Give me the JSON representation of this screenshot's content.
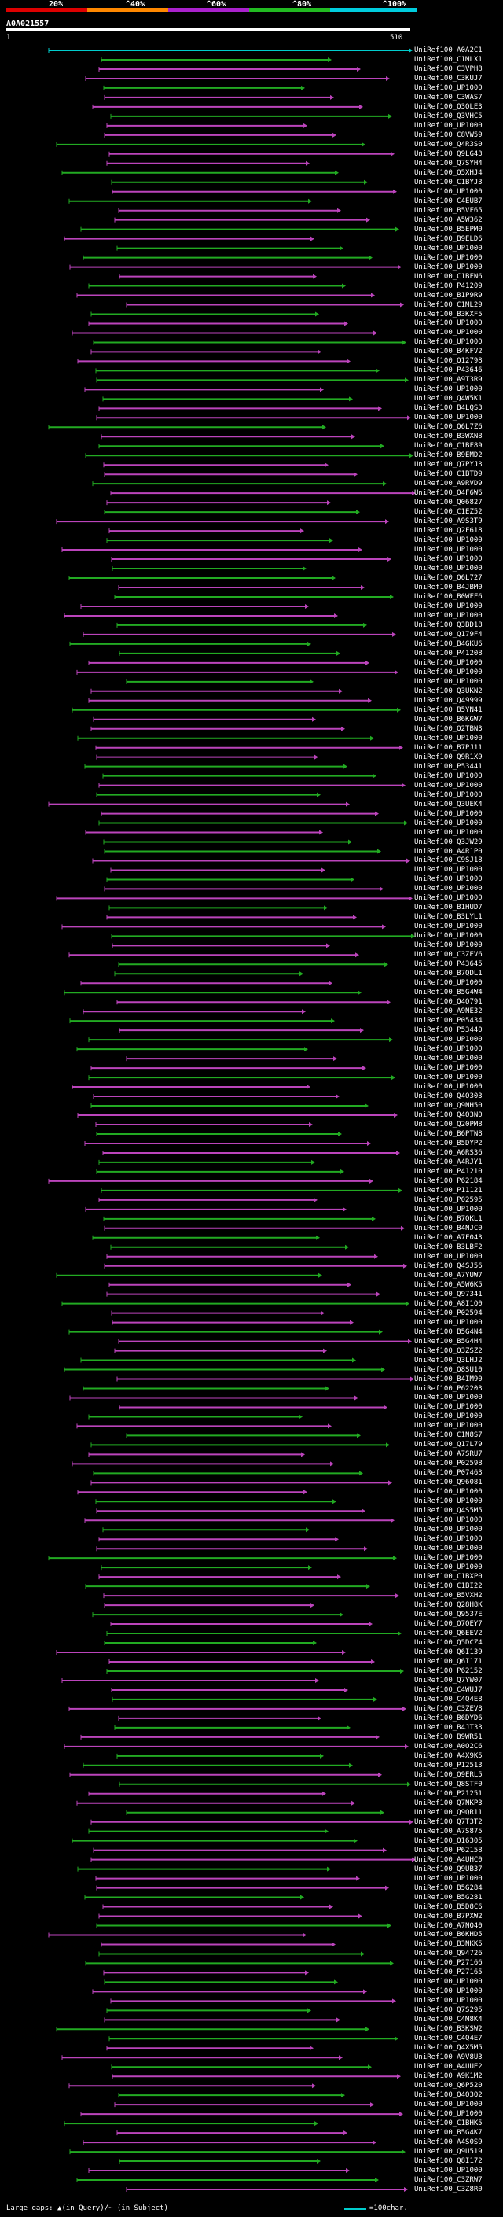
{
  "colors": {
    "green": "#22aa22",
    "magenta": "#bb44bb",
    "cyan": "#00cccc",
    "background": "#000000",
    "scale_bands": [
      "#dd0000",
      "#ff8800",
      "#aa22cc",
      "#22bb22",
      "#00ccdd"
    ]
  },
  "scale": {
    "ticks": [
      "20%",
      "^40%",
      "^60%",
      "^80%",
      "^100%"
    ]
  },
  "query": {
    "name": "A0A021557",
    "start": "1",
    "end": "510"
  },
  "footer": {
    "note": "Large gaps: ▲(in Query)/~ (in Subject)",
    "legend": "=100char."
  },
  "hits": {
    "labels": [
      "UniRef100_A0A2C1",
      "UniRef100_C1MLX1",
      "UniRef100_C3VPH8",
      "UniRef100_C3KUJ7",
      "UniRef100_UP1000",
      "UniRef100_C3WAS7",
      "UniRef100_Q3QLE3",
      "UniRef100_Q3VHC5",
      "UniRef100_UP1000",
      "UniRef100_C8VW59",
      "UniRef100_Q4R3S0",
      "UniRef100_Q9LG43",
      "UniRef100_Q7SYH4",
      "UniRef100_Q5XHJ4",
      "UniRef100_C1BYJ3",
      "UniRef100_UP1000",
      "UniRef100_C4EUB7",
      "UniRef100_B5VF65",
      "UniRef100_A5W362",
      "UniRef100_B5EPM0",
      "UniRef100_B9ELD6",
      "UniRef100_UP1000",
      "UniRef100_UP1000",
      "UniRef100_UP1000",
      "UniRef100_C1BFN6",
      "UniRef100_P41209",
      "UniRef100_B1P9R9",
      "UniRef100_C1ML29",
      "UniRef100_B3KXF5",
      "UniRef100_UP1000",
      "UniRef100_UP1000",
      "UniRef100_UP1000",
      "UniRef100_B4KFV2",
      "UniRef100_Q12798",
      "UniRef100_P43646",
      "UniRef100_A9T3R9",
      "UniRef100_UP1000",
      "UniRef100_Q4W5K1",
      "UniRef100_B4LQS3",
      "UniRef100_UP1000",
      "UniRef100_Q6L7Z6",
      "UniRef100_B3WXN8",
      "UniRef100_C1BF89",
      "UniRef100_B9EMD2",
      "UniRef100_Q7PYJ3",
      "UniRef100_C1BTD9",
      "UniRef100_A9RVD9",
      "UniRef100_Q4F6W6",
      "UniRef100_Q06827",
      "UniRef100_C1EZ52",
      "UniRef100_A9S3T9",
      "UniRef100_Q2F618",
      "UniRef100_UP1000",
      "UniRef100_UP1000",
      "UniRef100_UP1000",
      "UniRef100_UP1000",
      "UniRef100_Q6L727",
      "UniRef100_B4JBM0",
      "UniRef100_B0WFF6",
      "UniRef100_UP1000",
      "UniRef100_UP1000",
      "UniRef100_Q3BD18",
      "UniRef100_Q179F4",
      "UniRef100_B4GKU6",
      "UniRef100_P41208",
      "UniRef100_UP1000",
      "UniRef100_UP1000",
      "UniRef100_UP1000",
      "UniRef100_Q3UKN2",
      "UniRef100_Q49999",
      "UniRef100_B5YN41",
      "UniRef100_B6KGW7",
      "UniRef100_Q2TBN3",
      "UniRef100_UP1000",
      "UniRef100_B7PJ11",
      "UniRef100_Q9R1X9",
      "UniRef100_P53441",
      "UniRef100_UP1000",
      "UniRef100_UP1000",
      "UniRef100_UP1000",
      "UniRef100_Q3UEK4",
      "UniRef100_UP1000",
      "UniRef100_UP1000",
      "UniRef100_UP1000",
      "UniRef100_Q3JW29",
      "UniRef100_A4R1P0",
      "UniRef100_C9SJ18",
      "UniRef100_UP1000",
      "UniRef100_UP1000",
      "UniRef100_UP1000",
      "UniRef100_UP1000",
      "UniRef100_B1HUD7",
      "UniRef100_B3LYL1",
      "UniRef100_UP1000",
      "UniRef100_UP1000",
      "UniRef100_UP1000",
      "UniRef100_C3ZEV6",
      "UniRef100_P43645",
      "UniRef100_B7QDL1",
      "UniRef100_UP1000",
      "UniRef100_B5G4W4",
      "UniRef100_Q4O791",
      "UniRef100_A9NE32",
      "UniRef100_P05434",
      "UniRef100_P53440",
      "UniRef100_UP1000",
      "UniRef100_UP1000",
      "UniRef100_UP1000",
      "UniRef100_UP1000",
      "UniRef100_UP1000",
      "UniRef100_UP1000",
      "UniRef100_Q4O303",
      "UniRef100_Q9NH50",
      "UniRef100_Q4O3N0",
      "UniRef100_Q20PM8",
      "UniRef100_B6PTN8",
      "UniRef100_B5DYP2",
      "UniRef100_A6RS36",
      "UniRef100_A4RJY1",
      "UniRef100_P41210",
      "UniRef100_P62184",
      "UniRef100_P11121",
      "UniRef100_P02595",
      "UniRef100_UP1000",
      "UniRef100_B7QKL1",
      "UniRef100_B4NJC0",
      "UniRef100_A7F043",
      "UniRef100_B3LBF2",
      "UniRef100_UP1000",
      "UniRef100_Q4SJ56",
      "UniRef100_A7YUW7",
      "UniRef100_A5W6K5",
      "UniRef100_Q97341",
      "UniRef100_A8I1Q0",
      "UniRef100_P02594",
      "UniRef100_UP1000",
      "UniRef100_B5G4N4",
      "UniRef100_B5G4H4",
      "UniRef100_Q3ZSZ2",
      "UniRef100_Q3LHJ2",
      "UniRef100_Q8SU10",
      "UniRef100_B4IM90",
      "UniRef100_P62203",
      "UniRef100_UP1000",
      "UniRef100_UP1000",
      "UniRef100_UP1000",
      "UniRef100_UP1000",
      "UniRef100_C1N8S7",
      "UniRef100_Q17L79",
      "UniRef100_A7SRU7",
      "UniRef100_P02598",
      "UniRef100_P07463",
      "UniRef100_Q96081",
      "UniRef100_UP1000",
      "UniRef100_UP1000",
      "UniRef100_Q4S5M5",
      "UniRef100_UP1000",
      "UniRef100_UP1000",
      "UniRef100_UP1000",
      "UniRef100_UP1000",
      "UniRef100_UP1000",
      "UniRef100_UP1000",
      "UniRef100_C1BXP0",
      "UniRef100_C1BI22",
      "UniRef100_B5VXH2",
      "UniRef100_Q28H8K",
      "UniRef100_Q9537E",
      "UniRef100_Q7QEY7",
      "UniRef100_Q6EEV2",
      "UniRef100_Q5DCZ4",
      "UniRef100_Q6I139",
      "UniRef100_Q6I171",
      "UniRef100_P62152",
      "UniRef100_Q7YW07",
      "UniRef100_C4WUJ7",
      "UniRef100_C4Q4E8",
      "UniRef100_C3ZEV8",
      "UniRef100_B6DYD6",
      "UniRef100_B4JT33",
      "UniRef100_B9WR51",
      "UniRef100_A0O2C6",
      "UniRef100_A4X9K5",
      "UniRef100_P12513",
      "UniRef100_Q9ERL5",
      "UniRef100_Q8STF0",
      "UniRef100_P21251",
      "UniRef100_Q7NKP3",
      "UniRef100_Q9QR11",
      "UniRef100_Q7T3T2",
      "UniRef100_A7S875",
      "UniRef100_O16305",
      "UniRef100_P62158",
      "UniRef100_A4UHC0",
      "UniRef100_Q9UB37",
      "UniRef100_UP1000",
      "UniRef100_B5G284",
      "UniRef100_B5G281",
      "UniRef100_B5D8C6",
      "UniRef100_B7PXW2",
      "UniRef100_A7NQ40",
      "UniRef100_B6KHD5",
      "UniRef100_B3NKK5",
      "UniRef100_Q94726",
      "UniRef100_P27166",
      "UniRef100_P27165",
      "UniRef100_UP1000",
      "UniRef100_UP1000",
      "UniRef100_UP1000",
      "UniRef100_Q7S295",
      "UniRef100_C4M8K4",
      "UniRef100_B3KSW2",
      "UniRef100_C4Q4E7",
      "UniRef100_Q4X5M5",
      "UniRef100_A9V8U3",
      "UniRef100_A4UUE2",
      "UniRef100_A9K1M2",
      "UniRef100_Q6P520",
      "UniRef100_Q4Q3Q2",
      "UniRef100_UP1000",
      "UniRef100_UP1000",
      "UniRef100_C1BHK5",
      "UniRef100_B5G4K7",
      "UniRef100_A4S0S9",
      "UniRef100_Q9U519",
      "UniRef100_Q8I172",
      "UniRef100_UP1000",
      "UniRef100_C3ZRW7",
      "UniRef100_C3Z8R0"
    ]
  }
}
